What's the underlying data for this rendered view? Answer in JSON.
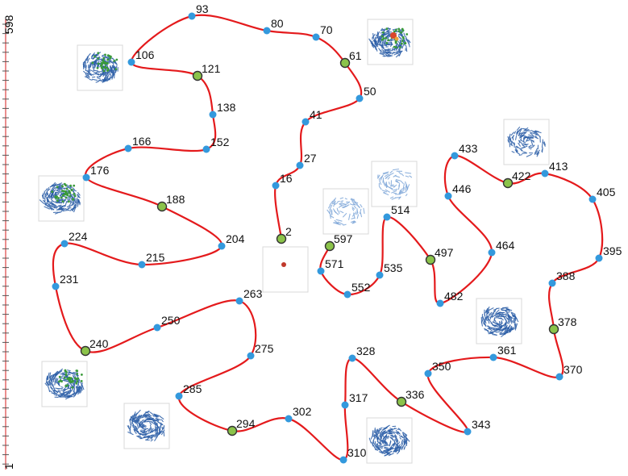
{
  "chart_data": {
    "type": "scatter",
    "title": "",
    "xlabel": "",
    "ylabel": "",
    "y_axis": {
      "top_label": "598",
      "bottom_label": "1",
      "range": [
        1,
        598
      ]
    },
    "grid": false,
    "legend": "none",
    "colors": {
      "trajectory": "#e41a1c",
      "point": "#3399dd",
      "highlight": "#8bc34a",
      "highlight_ring": "#333333",
      "axis": "#dd4444",
      "thumbnail_blue": "#2b5ea7",
      "thumbnail_green": "#3a9a3a"
    },
    "points": [
      {
        "label": "2",
        "hl": true
      },
      {
        "label": "16",
        "hl": false
      },
      {
        "label": "27",
        "hl": false
      },
      {
        "label": "41",
        "hl": false
      },
      {
        "label": "50",
        "hl": false
      },
      {
        "label": "61",
        "hl": true
      },
      {
        "label": "70",
        "hl": false
      },
      {
        "label": "80",
        "hl": false
      },
      {
        "label": "93",
        "hl": false
      },
      {
        "label": "106",
        "hl": false
      },
      {
        "label": "121",
        "hl": true
      },
      {
        "label": "138",
        "hl": false
      },
      {
        "label": "152",
        "hl": false
      },
      {
        "label": "166",
        "hl": false
      },
      {
        "label": "176",
        "hl": false
      },
      {
        "label": "188",
        "hl": true
      },
      {
        "label": "204",
        "hl": false
      },
      {
        "label": "215",
        "hl": false
      },
      {
        "label": "224",
        "hl": false
      },
      {
        "label": "231",
        "hl": false
      },
      {
        "label": "240",
        "hl": true
      },
      {
        "label": "250",
        "hl": false
      },
      {
        "label": "263",
        "hl": false
      },
      {
        "label": "275",
        "hl": false
      },
      {
        "label": "285",
        "hl": false
      },
      {
        "label": "294",
        "hl": true
      },
      {
        "label": "302",
        "hl": false
      },
      {
        "label": "310",
        "hl": false
      },
      {
        "label": "317",
        "hl": false
      },
      {
        "label": "328",
        "hl": false
      },
      {
        "label": "336",
        "hl": true
      },
      {
        "label": "343",
        "hl": false
      },
      {
        "label": "350",
        "hl": false
      },
      {
        "label": "361",
        "hl": false
      },
      {
        "label": "370",
        "hl": false
      },
      {
        "label": "378",
        "hl": true
      },
      {
        "label": "388",
        "hl": false
      },
      {
        "label": "395",
        "hl": false
      },
      {
        "label": "405",
        "hl": false
      },
      {
        "label": "413",
        "hl": false
      },
      {
        "label": "422",
        "hl": true
      },
      {
        "label": "433",
        "hl": false
      },
      {
        "label": "446",
        "hl": false
      },
      {
        "label": "464",
        "hl": false
      },
      {
        "label": "482",
        "hl": false
      },
      {
        "label": "497",
        "hl": true
      },
      {
        "label": "514",
        "hl": false
      },
      {
        "label": "535",
        "hl": false
      },
      {
        "label": "552",
        "hl": false
      },
      {
        "label": "571",
        "hl": false
      },
      {
        "label": "597",
        "hl": true
      }
    ],
    "thumbnails": [
      {
        "name": "thumb-61",
        "style": "swirl-red"
      },
      {
        "name": "thumb-121",
        "style": "swirl-green"
      },
      {
        "name": "thumb-188",
        "style": "swirl-green"
      },
      {
        "name": "thumb-240",
        "style": "swirl-green"
      },
      {
        "name": "thumb-294",
        "style": "blue"
      },
      {
        "name": "thumb-336",
        "style": "blue"
      },
      {
        "name": "thumb-378",
        "style": "blue"
      },
      {
        "name": "thumb-422",
        "style": "blue-sparse"
      },
      {
        "name": "thumb-497",
        "style": "sparse"
      },
      {
        "name": "thumb-597",
        "style": "sparse"
      },
      {
        "name": "thumb-2",
        "style": "dot"
      }
    ]
  }
}
